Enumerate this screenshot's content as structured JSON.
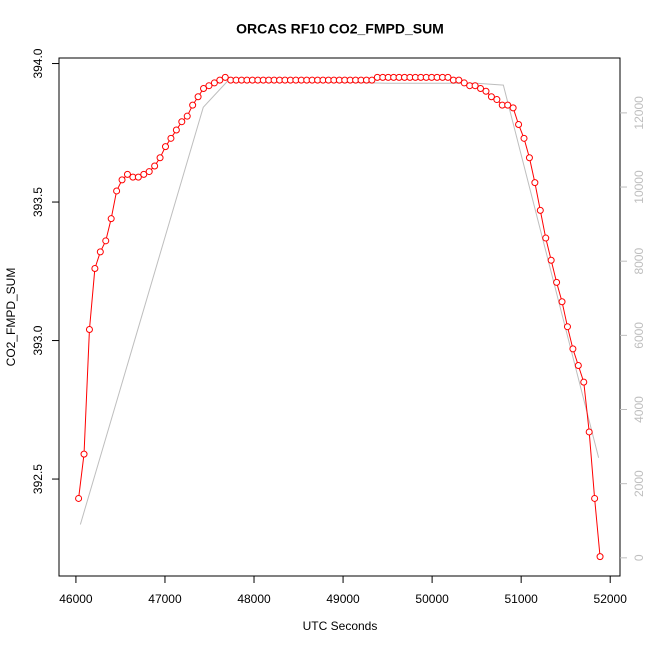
{
  "chart_data": {
    "type": "line",
    "title": "ORCAS RF10 CO2_FMPD_SUM",
    "x_label": "UTC Seconds",
    "y_label": "CO2_FMPD_SUM",
    "xlim": [
      45810,
      52110
    ],
    "xticks": [
      46000,
      47000,
      48000,
      49000,
      50000,
      51000,
      52000
    ],
    "ylim": [
      392.15,
      394.02
    ],
    "yticks": [
      392.5,
      {
        "value": 393,
        "label": "393.0"
      },
      393.5,
      {
        "value": 394,
        "label": "394.0"
      }
    ],
    "y2lim": [
      -490,
      13480
    ],
    "y2ticks": [
      0,
      2000,
      4000,
      6000,
      8000,
      10000,
      12000
    ],
    "series": [
      {
        "color": "#bebebe",
        "axis": "y2",
        "markers": false,
        "x": [
          46050,
          47430,
          47700,
          48500,
          49500,
          50500,
          50800,
          51870
        ],
        "values": [
          900,
          12150,
          12850,
          12850,
          12800,
          12800,
          12750,
          2700
        ]
      },
      {
        "color": "#ff0000",
        "markers": true,
        "x": [
          46030,
          46091,
          46152,
          46213,
          46274,
          46335,
          46396,
          46457,
          46518,
          46579,
          46640,
          46701,
          46762,
          46823,
          46884,
          46945,
          47006,
          47067,
          47128,
          47189,
          47250,
          47311,
          47372,
          47433,
          47494,
          47555,
          47616,
          47677,
          47738,
          47799,
          47860,
          47921,
          47982,
          48043,
          48104,
          48165,
          48226,
          48287,
          48348,
          48409,
          48470,
          48531,
          48592,
          48653,
          48714,
          48775,
          48836,
          48897,
          48958,
          49019,
          49080,
          49141,
          49202,
          49263,
          49324,
          49385,
          49446,
          49507,
          49568,
          49629,
          49690,
          49751,
          49812,
          49873,
          49934,
          49995,
          50056,
          50117,
          50178,
          50239,
          50300,
          50361,
          50422,
          50483,
          50544,
          50605,
          50666,
          50727,
          50788,
          50849,
          50910,
          50971,
          51032,
          51093,
          51154,
          51215,
          51276,
          51337,
          51398,
          51459,
          51520,
          51581,
          51642,
          51703,
          51764,
          51825,
          51886
        ],
        "values": [
          392.43,
          392.59,
          393.04,
          393.26,
          393.32,
          393.36,
          393.44,
          393.54,
          393.58,
          393.6,
          393.59,
          393.59,
          393.6,
          393.61,
          393.63,
          393.66,
          393.7,
          393.73,
          393.76,
          393.79,
          393.81,
          393.85,
          393.88,
          393.91,
          393.92,
          393.93,
          393.94,
          393.95,
          393.94,
          393.94,
          393.94,
          393.94,
          393.94,
          393.94,
          393.94,
          393.94,
          393.94,
          393.94,
          393.94,
          393.94,
          393.94,
          393.94,
          393.94,
          393.94,
          393.94,
          393.94,
          393.94,
          393.94,
          393.94,
          393.94,
          393.94,
          393.94,
          393.94,
          393.94,
          393.94,
          393.95,
          393.95,
          393.95,
          393.95,
          393.95,
          393.95,
          393.95,
          393.95,
          393.95,
          393.95,
          393.95,
          393.95,
          393.95,
          393.95,
          393.94,
          393.94,
          393.93,
          393.92,
          393.92,
          393.91,
          393.9,
          393.88,
          393.87,
          393.85,
          393.85,
          393.84,
          393.78,
          393.73,
          393.66,
          393.57,
          393.47,
          393.37,
          393.29,
          393.21,
          393.14,
          393.05,
          392.97,
          392.91,
          392.85,
          392.67,
          392.43,
          392.22
        ]
      }
    ]
  }
}
